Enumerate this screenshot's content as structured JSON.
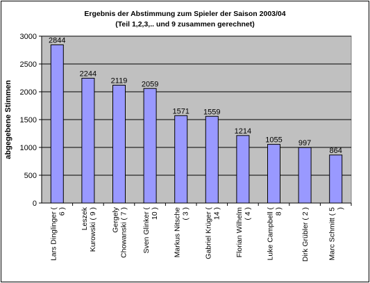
{
  "chart_data": {
    "type": "bar",
    "title": "Ergebnis der Abstimmung zum Spieler der Saison 2003/04",
    "subtitle": "(Teil 1,2,3,.. und 9 zusammen gerechnet)",
    "ylabel": "abgegebene Stimmen",
    "xlabel": "",
    "ylim": [
      0,
      3000
    ],
    "yticks": [
      "0",
      "500",
      "1000",
      "1500",
      "2000",
      "2500",
      "3000"
    ],
    "categories": [
      [
        "Lars Dinglinger (",
        "6 )"
      ],
      [
        "Leszek",
        "Kurowski ( 9 )"
      ],
      [
        "Gergely",
        "Chowanski ( 7 )"
      ],
      [
        "Sven Glinker (",
        "10 )"
      ],
      [
        "Markus Nitsche",
        "( 3 )"
      ],
      [
        "Gabriel Krüger (",
        "14 )"
      ],
      [
        "Florian Wilhelm",
        "( 4 )"
      ],
      [
        "Luke Campbell (",
        "8 )"
      ],
      [
        "Dirk Grübler ( 2 )"
      ],
      [
        "Marc Schmitt ( 5",
        ")"
      ]
    ],
    "values": [
      2844,
      2244,
      2119,
      2059,
      1571,
      1559,
      1214,
      1055,
      997,
      864
    ],
    "data_labels": [
      "2844",
      "2244",
      "2119",
      "2059",
      "1571",
      "1559",
      "1214",
      "1055",
      "997",
      "864"
    ],
    "grid": true,
    "legend": "none",
    "colors": {
      "bar": "#9999ff",
      "plot_bg": "#c0c0c0"
    }
  }
}
